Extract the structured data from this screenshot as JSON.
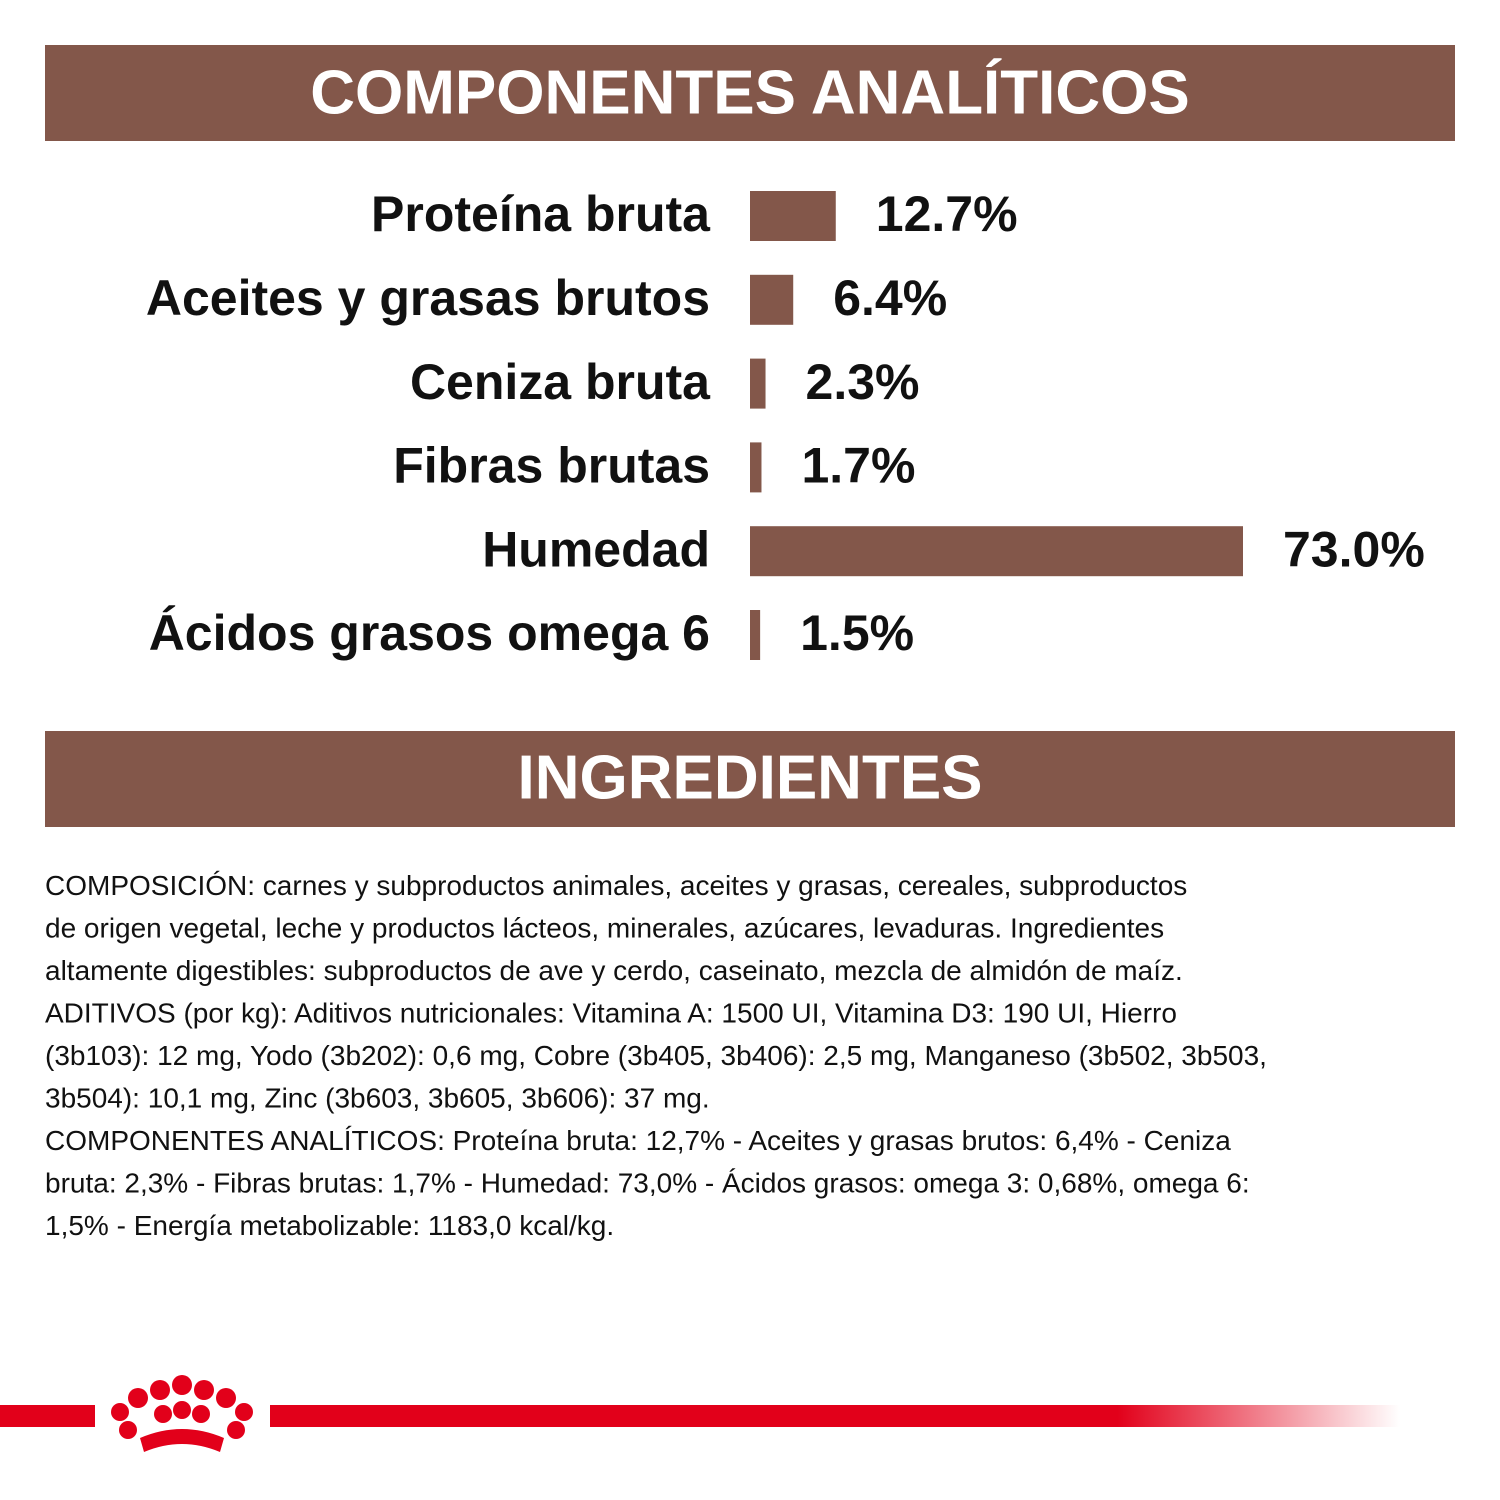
{
  "chart_data": {
    "type": "bar",
    "title": "COMPONENTES ANALÍTICOS",
    "categories": [
      "Proteína bruta",
      "Aceites y grasas brutos",
      "Ceniza bruta",
      "Fibras brutas",
      "Humedad",
      "Ácidos grasos omega 6"
    ],
    "values": [
      12.7,
      6.4,
      2.3,
      1.7,
      73.0,
      1.5
    ],
    "value_labels": [
      "12.7%",
      "6.4%",
      "2.3%",
      "1.7%",
      "73.0%",
      "1.5%"
    ],
    "color": "#83574a"
  },
  "ingredients": {
    "title": "INGREDIENTES",
    "lines": [
      "COMPOSICIÓN: carnes y subproductos animales, aceites y grasas, cereales, subproductos",
      "de origen vegetal, leche y productos lácteos, minerales, azúcares, levaduras. Ingredientes",
      "altamente digestibles: subproductos de ave y cerdo, caseinato, mezcla de almidón de maíz.",
      "ADITIVOS (por kg): Aditivos nutricionales: Vitamina A: 1500 UI, Vitamina D3: 190 UI, Hierro",
      "(3b103): 12 mg, Yodo (3b202): 0,6 mg, Cobre (3b405, 3b406): 2,5 mg, Manganeso (3b502, 3b503,",
      "3b504): 10,1 mg, Zinc (3b603, 3b605, 3b606): 37 mg.",
      "COMPONENTES ANALÍTICOS: Proteína bruta: 12,7% - Aceites y grasas brutos: 6,4% - Ceniza",
      "bruta: 2,3% - Fibras brutas: 1,7% - Humedad: 73,0% - Ácidos grasos: omega 3: 0,68%, omega 6:",
      "1,5% - Energía metabolizable: 1183,0 kcal/kg."
    ]
  }
}
